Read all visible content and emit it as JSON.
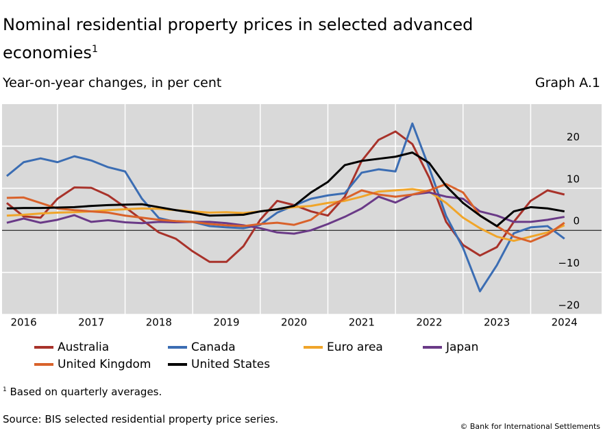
{
  "chart_data": {
    "type": "line",
    "title": "Nominal residential property prices in selected advanced economies",
    "title_note": "1",
    "subtitle": "Year-on-year changes, in per cent",
    "graph_label": "Graph A.1",
    "footnote_mark": "1",
    "footnote": "Based on quarterly averages.",
    "source": "Source: BIS selected residential property price series.",
    "copyright": "© Bank for International Settlements",
    "x": [
      2016.25,
      2016.5,
      2016.75,
      2017,
      2017.25,
      2017.5,
      2017.75,
      2018,
      2018.25,
      2018.5,
      2018.75,
      2019,
      2019.25,
      2019.5,
      2019.75,
      2020,
      2020.25,
      2020.5,
      2020.75,
      2021,
      2021.25,
      2021.5,
      2021.75,
      2022,
      2022.25,
      2022.5,
      2022.75,
      2023,
      2023.25,
      2023.5,
      2023.75,
      2024,
      2024.25,
      2024.5
    ],
    "xlim": [
      2016.18,
      2025.05
    ],
    "xticks": [
      {
        "value": 2016.5,
        "label": "2016"
      },
      {
        "value": 2017.5,
        "label": "2017"
      },
      {
        "value": 2018.5,
        "label": "2018"
      },
      {
        "value": 2019.5,
        "label": "2019"
      },
      {
        "value": 2020.5,
        "label": "2020"
      },
      {
        "value": 2021.5,
        "label": "2021"
      },
      {
        "value": 2022.5,
        "label": "2022"
      },
      {
        "value": 2023.5,
        "label": "2023"
      },
      {
        "value": 2024.5,
        "label": "2024"
      }
    ],
    "xgrid": [
      2017,
      2018,
      2019,
      2020,
      2021,
      2022,
      2023,
      2024
    ],
    "ylim": [
      -20,
      30
    ],
    "yticks": [
      {
        "value": -20,
        "label": "−20"
      },
      {
        "value": -10,
        "label": "−10"
      },
      0,
      10,
      20
    ],
    "grid": true,
    "series": [
      {
        "name": "Australia",
        "color": "#a8322a",
        "values": [
          6.5,
          3.3,
          3,
          7.5,
          10.2,
          10.1,
          8.3,
          5.5,
          2.5,
          -0.5,
          -2,
          -5,
          -7.5,
          -7.5,
          -3.8,
          2.5,
          7,
          6,
          4.5,
          3.5,
          8,
          16.5,
          21.5,
          23.5,
          20.5,
          12.5,
          2,
          -3.5,
          -6,
          -4,
          2,
          7,
          9.5,
          8.5
        ]
      },
      {
        "name": "Canada",
        "color": "#3b6db3",
        "values": [
          12.9,
          16.2,
          17.1,
          16.2,
          17.6,
          16.6,
          15,
          14,
          7.5,
          2.9,
          2,
          2,
          1,
          0.7,
          0.5,
          1.3,
          4.2,
          5.9,
          7.5,
          8.3,
          8.8,
          13.7,
          14.5,
          14,
          25.4,
          14.8,
          3.4,
          -4.2,
          -14.5,
          -8.3,
          -0.7,
          0.7,
          1,
          -2
        ]
      },
      {
        "name": "Euro area",
        "color": "#f0a52a",
        "values": [
          3.5,
          3.7,
          4,
          4.2,
          4.3,
          4.5,
          4.8,
          5,
          5.2,
          5.1,
          4.8,
          4.5,
          4.2,
          4.3,
          4.1,
          4.5,
          5,
          5.5,
          5.8,
          6.5,
          7,
          8,
          9.2,
          9.5,
          9.8,
          9.2,
          6.5,
          3,
          0.5,
          -1.5,
          -2.5,
          -1.5,
          -0.5,
          1.2
        ]
      },
      {
        "name": "Japan",
        "color": "#6a3a87",
        "values": [
          1.8,
          2.8,
          1.8,
          2.5,
          3.6,
          2,
          2.4,
          1.9,
          1.7,
          2,
          1.9,
          2,
          2,
          1.7,
          1.2,
          0.5,
          -0.5,
          -0.8,
          0,
          1.5,
          3.2,
          5.2,
          8,
          6.6,
          8.5,
          9,
          8,
          7.5,
          4.5,
          3.5,
          2,
          2,
          2.5,
          3.2
        ]
      },
      {
        "name": "United Kingdom",
        "color": "#d9622b",
        "values": [
          7.7,
          7.8,
          6.5,
          5.2,
          4.8,
          4.5,
          4.2,
          3.5,
          3,
          2.5,
          2.2,
          2,
          1.5,
          1.2,
          1,
          1.5,
          1.8,
          1.3,
          2.5,
          5.5,
          7.5,
          9.5,
          8.5,
          8,
          8.5,
          9.5,
          11,
          9,
          3.5,
          1,
          -1.5,
          -2.7,
          -1,
          1.8
        ]
      },
      {
        "name": "United States",
        "color": "#000000",
        "values": [
          5.2,
          5.3,
          5.3,
          5.4,
          5.5,
          5.8,
          6,
          6.1,
          6.2,
          5.5,
          4.8,
          4.2,
          3.5,
          3.6,
          3.7,
          4.5,
          5,
          5.8,
          9,
          11.5,
          15.5,
          16.5,
          17,
          17.5,
          18.5,
          16,
          10.5,
          6.5,
          3.5,
          1,
          4.5,
          5.5,
          5.2,
          4.5
        ]
      }
    ]
  }
}
